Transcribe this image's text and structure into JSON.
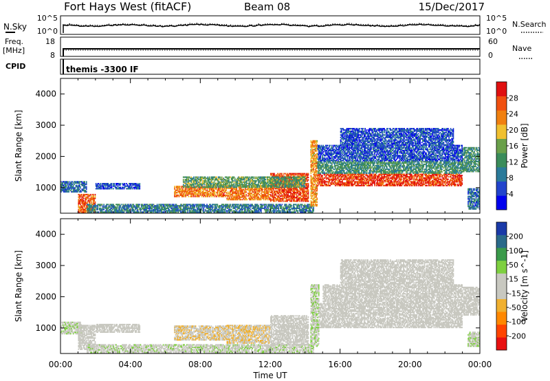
{
  "header": {
    "station": "Fort Hays West (fitACF)",
    "beam": "Beam 08",
    "date": "15/Dec/2017"
  },
  "top_panels": {
    "nsky_label": "N.Sky",
    "nsearch_label": "N.Search",
    "noise_ticks_left": [
      "10^5",
      "10^0"
    ],
    "noise_ticks_right": [
      "10^5",
      "10^0"
    ],
    "freq_label": "Freq.",
    "freq_unit": "[MHz]",
    "freq_ticks": [
      "18",
      "8"
    ],
    "nave_label": "Nave",
    "nave_ticks": [
      "60",
      "0"
    ],
    "cpid_label": "CPID",
    "cpid_value": "themis -3300 IF"
  },
  "colors": {
    "power_scale": [
      "#0000ee",
      "#2244cc",
      "#2a7a9a",
      "#3a8c5a",
      "#6aa04a",
      "#f0c030",
      "#f08010",
      "#f05010",
      "#e01010"
    ],
    "velocity_scale": [
      "#e81010",
      "#ff4400",
      "#ff8800",
      "#f0b030",
      "#c8c8c0",
      "#c8c8c0",
      "#7ed040",
      "#3a9a4a",
      "#2a6a8a",
      "#1a3aa8"
    ]
  },
  "chart_data": [
    {
      "type": "heatmap",
      "panel": "power",
      "xlabel": "",
      "ylabel": "Slant Range [km]",
      "xlim": [
        0,
        24
      ],
      "ylim": [
        180,
        4500
      ],
      "y_ticks": [
        1000,
        2000,
        3000,
        4000
      ],
      "colorbar_label": "Power [dB]",
      "colorbar_ticks": [
        "4",
        "8",
        "12",
        "16",
        "20",
        "24",
        "28"
      ],
      "colorbar_range": [
        0,
        32
      ],
      "regions": [
        {
          "t": [
            0.0,
            1.5
          ],
          "r": [
            850,
            1200
          ],
          "v": 8
        },
        {
          "t": [
            1.0,
            2.0
          ],
          "r": [
            200,
            800
          ],
          "v": 26
        },
        {
          "t": [
            2.0,
            4.5
          ],
          "r": [
            950,
            1150
          ],
          "v": 6
        },
        {
          "t": [
            1.5,
            14.5
          ],
          "r": [
            200,
            450
          ],
          "v": 10
        },
        {
          "t": [
            6.5,
            9.5
          ],
          "r": [
            700,
            1050
          ],
          "v": 24
        },
        {
          "t": [
            9.5,
            12.0
          ],
          "r": [
            600,
            1050
          ],
          "v": 24
        },
        {
          "t": [
            12.0,
            14.2
          ],
          "r": [
            550,
            1450
          ],
          "v": 27
        },
        {
          "t": [
            7.0,
            14.0
          ],
          "r": [
            1000,
            1350
          ],
          "v": 14
        },
        {
          "t": [
            14.3,
            14.7
          ],
          "r": [
            400,
            2500
          ],
          "v": 22
        },
        {
          "t": [
            14.7,
            23.0
          ],
          "r": [
            1050,
            1450
          ],
          "v": 28
        },
        {
          "t": [
            14.7,
            23.0
          ],
          "r": [
            1450,
            1850
          ],
          "v": 12
        },
        {
          "t": [
            14.7,
            23.0
          ],
          "r": [
            1850,
            2350
          ],
          "v": 6
        },
        {
          "t": [
            16.0,
            22.5
          ],
          "r": [
            2350,
            2900
          ],
          "v": 6
        },
        {
          "t": [
            23.0,
            24.0
          ],
          "r": [
            1500,
            2300
          ],
          "v": 12
        },
        {
          "t": [
            23.3,
            24.0
          ],
          "r": [
            300,
            950
          ],
          "v": 8
        }
      ]
    },
    {
      "type": "heatmap",
      "panel": "velocity",
      "xlabel": "Time UT",
      "ylabel": "Slant Range [km]",
      "xlim": [
        0,
        24
      ],
      "ylim": [
        180,
        4500
      ],
      "x_ticks": [
        "00:00",
        "04:00",
        "08:00",
        "12:00",
        "16:00",
        "20:00",
        "00:00"
      ],
      "y_ticks": [
        1000,
        2000,
        3000,
        4000
      ],
      "colorbar_label": "Velocity [m s^-1]",
      "colorbar_ticks": [
        "-200",
        "-100",
        "-50",
        "-15",
        "15",
        "50",
        "100",
        "200"
      ],
      "colorbar_range": [
        -250,
        250
      ],
      "regions": [
        {
          "t": [
            0.0,
            1.2
          ],
          "r": [
            800,
            1200
          ],
          "v": 40
        },
        {
          "t": [
            1.0,
            2.0
          ],
          "r": [
            300,
            1100
          ],
          "v": 0
        },
        {
          "t": [
            2.0,
            4.5
          ],
          "r": [
            850,
            1100
          ],
          "v": 0
        },
        {
          "t": [
            1.5,
            14.5
          ],
          "r": [
            200,
            450
          ],
          "v": 30
        },
        {
          "t": [
            6.5,
            9.5
          ],
          "r": [
            600,
            1050
          ],
          "v": -40
        },
        {
          "t": [
            9.5,
            12.0
          ],
          "r": [
            500,
            1100
          ],
          "v": -40
        },
        {
          "t": [
            12.0,
            14.2
          ],
          "r": [
            450,
            1400
          ],
          "v": 10
        },
        {
          "t": [
            14.3,
            14.8
          ],
          "r": [
            400,
            2400
          ],
          "v": 40
        },
        {
          "t": [
            14.8,
            23.0
          ],
          "r": [
            1000,
            1800
          ],
          "v": 0
        },
        {
          "t": [
            15.0,
            23.0
          ],
          "r": [
            1800,
            2400
          ],
          "v": 0
        },
        {
          "t": [
            16.0,
            22.5
          ],
          "r": [
            2400,
            3200
          ],
          "v": 0
        },
        {
          "t": [
            23.0,
            24.0
          ],
          "r": [
            1400,
            2300
          ],
          "v": 0
        },
        {
          "t": [
            23.3,
            24.0
          ],
          "r": [
            400,
            850
          ],
          "v": 40
        }
      ]
    }
  ]
}
